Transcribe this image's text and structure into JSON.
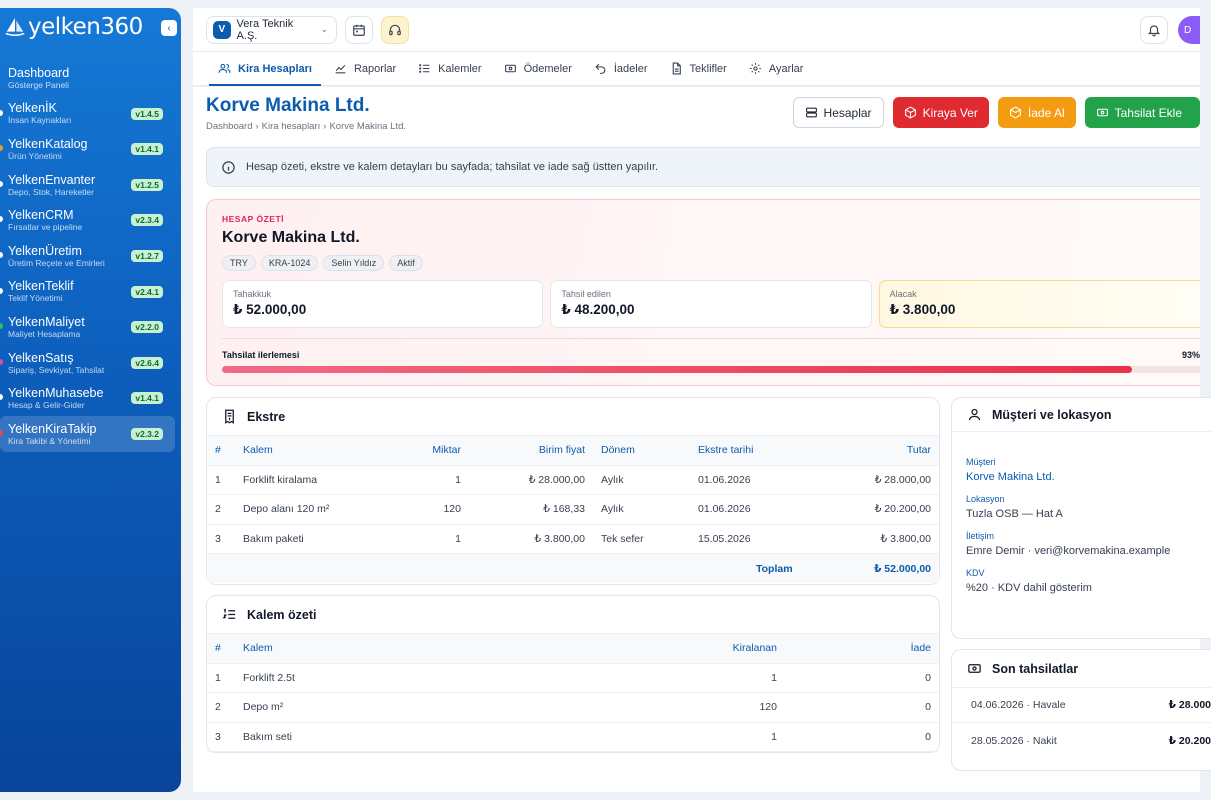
{
  "brand": {
    "name": "yelken360"
  },
  "sidebar": {
    "items": [
      {
        "title": "Dashboard",
        "subtitle": "Gösterge Paneli",
        "version": "",
        "dot": ""
      },
      {
        "title": "YelkenİK",
        "subtitle": "İnsan Kaynakları",
        "version": "v1.4.5",
        "dot": "#ffffff"
      },
      {
        "title": "YelkenKatalog",
        "subtitle": "Ürün Yönetimi",
        "version": "v1.4.1",
        "dot": "#f59e0b"
      },
      {
        "title": "YelkenEnvanter",
        "subtitle": "Depo, Stok, Hareketler",
        "version": "v1.2.5",
        "dot": "#ffffff"
      },
      {
        "title": "YelkenCRM",
        "subtitle": "Fırsatlar ve pipeline",
        "version": "v2.3.4",
        "dot": "#ffffff"
      },
      {
        "title": "YelkenÜretim",
        "subtitle": "Üretim Reçete ve Emirleri",
        "version": "v1.2.7",
        "dot": "#ffffff"
      },
      {
        "title": "YelkenTeklif",
        "subtitle": "Teklif Yönetimi",
        "version": "v2.4.1",
        "dot": "#ffffff"
      },
      {
        "title": "YelkenMaliyet",
        "subtitle": "Maliyet Hesaplama",
        "version": "v2.2.0",
        "dot": "#22c55e"
      },
      {
        "title": "YelkenSatış",
        "subtitle": "Sipariş, Sevkiyat, Tahsilat",
        "version": "v2.6.4",
        "dot": "#ec4899"
      },
      {
        "title": "YelkenMuhasebe",
        "subtitle": "Hesap & Gelir-Gider",
        "version": "v1.4.1",
        "dot": "#ffffff"
      },
      {
        "title": "YelkenKiraTakip",
        "subtitle": "Kira Takibi & Yönetimi",
        "version": "v2.3.2",
        "dot": "#ef4444"
      }
    ],
    "active_index": 10
  },
  "topbar": {
    "company_initial": "V",
    "company_name": "Vera Teknik A.Ş.",
    "avatar_initial": "D"
  },
  "tabs": [
    {
      "label": "Kira Hesapları",
      "icon": "users-icon",
      "active": true
    },
    {
      "label": "Raporlar",
      "icon": "chart-line-icon",
      "active": false
    },
    {
      "label": "Kalemler",
      "icon": "list-icon",
      "active": false
    },
    {
      "label": "Ödemeler",
      "icon": "cash-icon",
      "active": false
    },
    {
      "label": "İadeler",
      "icon": "undo-icon",
      "active": false
    },
    {
      "label": "Teklifler",
      "icon": "document-icon",
      "active": false
    },
    {
      "label": "Ayarlar",
      "icon": "gear-icon",
      "active": false
    }
  ],
  "page": {
    "title": "Korve Makina Ltd.",
    "breadcrumb": [
      "Dashboard",
      "Kira hesapları",
      "Korve Makina Ltd."
    ],
    "actions": {
      "accounts": "Hesaplar",
      "rent_out": "Kiraya Ver",
      "take_return": "İade Al",
      "add_collection": "Tahsilat Ekle"
    },
    "info": "Hesap özeti, ekstre ve kalem detayları bu sayfada; tahsilat ve iade sağ üstten yapılır."
  },
  "summary": {
    "kicker": "HESAP ÖZETİ",
    "name": "Korve Makina Ltd.",
    "chips": [
      "TRY",
      "KRA-1024",
      "Selin Yıldız",
      "Aktif"
    ],
    "kpis": [
      {
        "label": "Tahakkuk",
        "value": "₺ 52.000,00"
      },
      {
        "label": "Tahsil edilen",
        "value": "₺ 48.200,00"
      },
      {
        "label": "Alacak",
        "value": "₺ 3.800,00"
      }
    ],
    "progress_label": "Tahsilat ilerlemesi",
    "progress_text": "93%",
    "progress_value": 0.93
  },
  "statement": {
    "title": "Ekstre",
    "headers": [
      "#",
      "Kalem",
      "Miktar",
      "Birim fiyat",
      "Dönem",
      "Ekstre tarihi",
      "Tutar"
    ],
    "rows": [
      [
        "1",
        "Forklift kiralama",
        "1",
        "₺ 28.000,00",
        "Aylık",
        "01.06.2026",
        "₺ 28.000,00"
      ],
      [
        "2",
        "Depo alanı 120 m²",
        "120",
        "₺ 168,33",
        "Aylık",
        "01.06.2026",
        "₺ 20.200,00"
      ],
      [
        "3",
        "Bakım paketi",
        "1",
        "₺ 3.800,00",
        "Tek sefer",
        "15.05.2026",
        "₺ 3.800,00"
      ]
    ],
    "total_label": "Toplam",
    "total_value": "₺ 52.000,00"
  },
  "items_summary": {
    "title": "Kalem özeti",
    "headers": [
      "#",
      "Kalem",
      "Kiralanan",
      "İade"
    ],
    "rows": [
      [
        "1",
        "Forklift 2.5t",
        "1",
        "0"
      ],
      [
        "2",
        "Depo m²",
        "120",
        "0"
      ],
      [
        "3",
        "Bakım seti",
        "1",
        "0"
      ]
    ]
  },
  "customer": {
    "title": "Müşteri ve lokasyon",
    "fields": [
      {
        "key": "Müşteri",
        "value": "Korve Makina Ltd."
      },
      {
        "key": "Lokasyon",
        "value": "Tuzla OSB — Hat A"
      },
      {
        "key": "İletişim",
        "value": "Emre Demir · veri@korvemakina.example"
      },
      {
        "key": "KDV",
        "value": "%20 · KDV dahil gösterim"
      }
    ]
  },
  "payments": {
    "title": "Son tahsilatlar",
    "rows": [
      {
        "label": "04.06.2026 · Havale",
        "amount": "₺ 28.000"
      },
      {
        "label": "28.05.2026 · Nakit",
        "amount": "₺ 20.200"
      }
    ]
  },
  "colors": {
    "primary": "#0b5cad",
    "danger": "#df2a2f",
    "warning": "#f39c12",
    "success": "#22a34a",
    "accent_pink": "#e0245e"
  }
}
